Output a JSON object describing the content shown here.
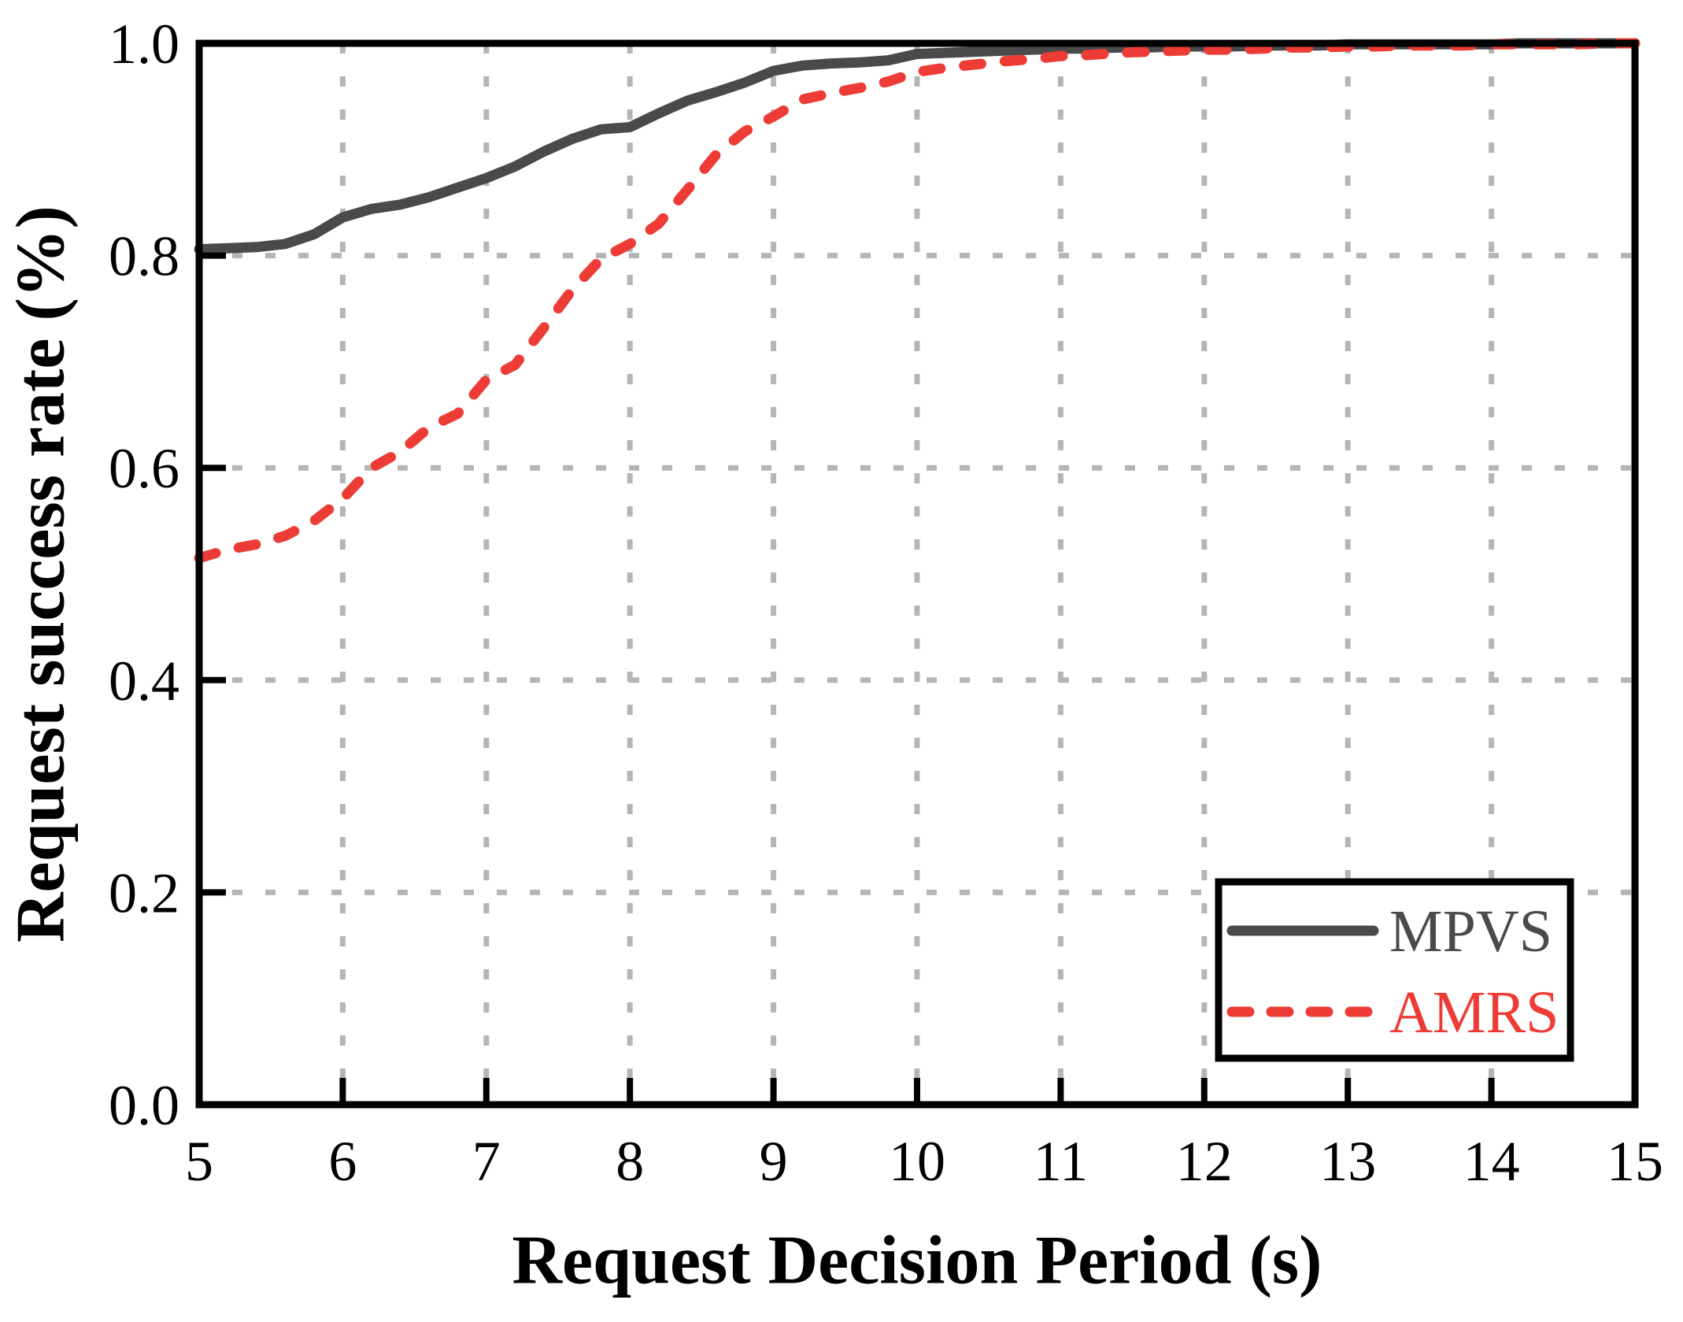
{
  "chart_data": {
    "type": "line",
    "title": "",
    "xlabel": "Request Decision Period (s)",
    "ylabel": "Request success rate (%)",
    "xlim": [
      5,
      15
    ],
    "ylim": [
      0.0,
      1.0
    ],
    "xticks": [
      5,
      6,
      7,
      8,
      9,
      10,
      11,
      12,
      13,
      14,
      15
    ],
    "xtick_labels": [
      "5",
      "6",
      "7",
      "8",
      "9",
      "10",
      "11",
      "12",
      "13",
      "14",
      "15"
    ],
    "yticks": [
      0.0,
      0.2,
      0.4,
      0.6,
      0.8,
      1.0
    ],
    "ytick_labels": [
      "0.0",
      "0.2",
      "0.4",
      "0.6",
      "0.8",
      "1.0"
    ],
    "grid": {
      "visible": true,
      "style": "dashed",
      "color": "#b5b5b5",
      "x_at": [
        6,
        7,
        8,
        9,
        10,
        11,
        12,
        13,
        14
      ],
      "y_at": [
        0.2,
        0.4,
        0.6,
        0.8
      ]
    },
    "legend": {
      "position": "lower-right",
      "entries": [
        "MPVS",
        "AMRS"
      ]
    },
    "x": [
      5.0,
      5.2,
      5.4,
      5.6,
      5.8,
      6.0,
      6.2,
      6.4,
      6.6,
      6.8,
      7.0,
      7.2,
      7.4,
      7.6,
      7.8,
      8.0,
      8.2,
      8.4,
      8.6,
      8.8,
      9.0,
      9.2,
      9.4,
      9.6,
      9.8,
      10.0,
      10.2,
      10.4,
      10.6,
      10.8,
      11.0,
      11.2,
      11.4,
      11.6,
      11.8,
      12.0,
      12.2,
      12.4,
      12.6,
      12.8,
      13.0,
      13.2,
      13.4,
      13.6,
      13.8,
      14.0,
      14.2,
      14.4,
      14.6,
      14.8,
      15.0
    ],
    "series": [
      {
        "name": "MPVS",
        "color": "#4a4a4c",
        "style": "solid",
        "values": [
          0.806,
          0.807,
          0.808,
          0.811,
          0.82,
          0.836,
          0.844,
          0.848,
          0.855,
          0.864,
          0.873,
          0.884,
          0.898,
          0.91,
          0.919,
          0.921,
          0.934,
          0.946,
          0.954,
          0.963,
          0.974,
          0.979,
          0.981,
          0.982,
          0.984,
          0.99,
          0.991,
          0.992,
          0.993,
          0.994,
          0.995,
          0.995,
          0.996,
          0.996,
          0.997,
          0.997,
          0.997,
          0.998,
          0.998,
          0.998,
          0.999,
          0.999,
          0.999,
          0.999,
          0.999,
          0.999,
          1.0,
          1.0,
          1.0,
          1.0,
          1.0
        ]
      },
      {
        "name": "AMRS",
        "color": "#ed3b36",
        "style": "dashed",
        "values": [
          0.515,
          0.523,
          0.528,
          0.536,
          0.55,
          0.571,
          0.6,
          0.615,
          0.638,
          0.651,
          0.683,
          0.697,
          0.732,
          0.768,
          0.797,
          0.811,
          0.83,
          0.862,
          0.895,
          0.917,
          0.931,
          0.947,
          0.953,
          0.958,
          0.964,
          0.973,
          0.977,
          0.98,
          0.983,
          0.985,
          0.988,
          0.989,
          0.991,
          0.992,
          0.993,
          0.994,
          0.994,
          0.995,
          0.996,
          0.996,
          0.997,
          0.997,
          0.998,
          0.998,
          0.998,
          0.999,
          0.999,
          0.999,
          0.999,
          1.0,
          1.0
        ]
      }
    ]
  }
}
